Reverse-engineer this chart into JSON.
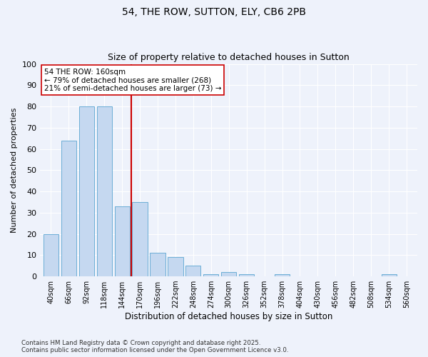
{
  "title1": "54, THE ROW, SUTTON, ELY, CB6 2PB",
  "title2": "Size of property relative to detached houses in Sutton",
  "xlabel": "Distribution of detached houses by size in Sutton",
  "ylabel": "Number of detached properties",
  "categories": [
    "40sqm",
    "66sqm",
    "92sqm",
    "118sqm",
    "144sqm",
    "170sqm",
    "196sqm",
    "222sqm",
    "248sqm",
    "274sqm",
    "300sqm",
    "326sqm",
    "352sqm",
    "378sqm",
    "404sqm",
    "430sqm",
    "456sqm",
    "482sqm",
    "508sqm",
    "534sqm",
    "560sqm"
  ],
  "values": [
    20,
    64,
    80,
    80,
    33,
    35,
    11,
    9,
    5,
    1,
    2,
    1,
    0,
    1,
    0,
    0,
    0,
    0,
    0,
    1,
    0
  ],
  "bar_color": "#c5d8f0",
  "bar_edge_color": "#6baed6",
  "vline_x": 4.5,
  "vline_color": "#cc0000",
  "annotation_text": "54 THE ROW: 160sqm\n← 79% of detached houses are smaller (268)\n21% of semi-detached houses are larger (73) →",
  "annotation_box_color": "#ffffff",
  "annotation_box_edge_color": "#cc0000",
  "ylim": [
    0,
    100
  ],
  "yticks": [
    0,
    10,
    20,
    30,
    40,
    50,
    60,
    70,
    80,
    90,
    100
  ],
  "background_color": "#eef2fb",
  "grid_color": "#ffffff",
  "footer": "Contains HM Land Registry data © Crown copyright and database right 2025.\nContains public sector information licensed under the Open Government Licence v3.0.",
  "title_fontsize": 10,
  "subtitle_fontsize": 9
}
